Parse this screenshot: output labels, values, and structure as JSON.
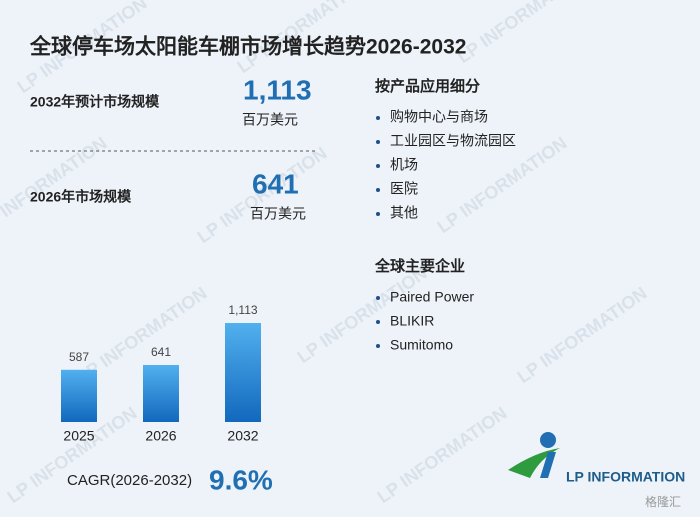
{
  "title": "全球停车场太阳能车棚市场增长趋势2026-2032",
  "market_2032": {
    "label": "2032年预计市场规模",
    "value": "1,113",
    "unit": "百万美元"
  },
  "market_2026": {
    "label": "2026年市场规模",
    "value": "641",
    "unit": "百万美元"
  },
  "segments": {
    "title": "按产品应用细分",
    "items": [
      "购物中心与商场",
      "工业园区与物流园区",
      "机场",
      "医院",
      "其他"
    ]
  },
  "companies": {
    "title": "全球主要企业",
    "items": [
      "Paired Power",
      "BLIKIR",
      "Sumitomo"
    ]
  },
  "cagr": {
    "label": "CAGR(2026-2032)",
    "value": "9.6%"
  },
  "logo": "LP INFORMATION",
  "source_mark": "格隆汇",
  "chart_data": {
    "type": "bar",
    "categories": [
      "2025",
      "2026",
      "2032"
    ],
    "values": [
      587,
      641,
      1113
    ],
    "value_labels": [
      "587",
      "641",
      "1,113"
    ],
    "color_top": "#52b0ee",
    "color_bottom": "#1268bd"
  }
}
